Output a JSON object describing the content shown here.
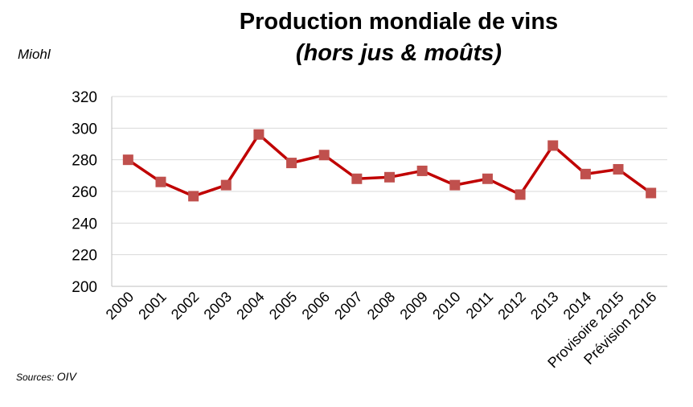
{
  "title": "Production mondiale de vins",
  "subtitle": "(hors jus & moûts)",
  "unit_label": "Miohl",
  "source": {
    "label": "Sources:",
    "name": "OIV"
  },
  "colors": {
    "line": "#c00000",
    "marker": "#c0504d",
    "grid": "#d9d9d9",
    "axis": "#bfbfbf"
  },
  "chart_data": {
    "type": "line",
    "title": "Production mondiale de vins",
    "subtitle": "(hors jus & moûts)",
    "ylabel": "Miohl",
    "xlabel": "",
    "ylim": [
      200,
      320
    ],
    "yticks": [
      200,
      220,
      240,
      260,
      280,
      300,
      320
    ],
    "grid": true,
    "categories": [
      "2000",
      "2001",
      "2002",
      "2003",
      "2004",
      "2005",
      "2006",
      "2007",
      "2008",
      "2009",
      "2010",
      "2011",
      "2012",
      "2013",
      "2014",
      "Provisoire 2015",
      "Prévision 2016"
    ],
    "series": [
      {
        "values": [
          280,
          266,
          257,
          264,
          296,
          278,
          283,
          268,
          269,
          273,
          264,
          268,
          258,
          289,
          271,
          274,
          259
        ]
      }
    ]
  }
}
